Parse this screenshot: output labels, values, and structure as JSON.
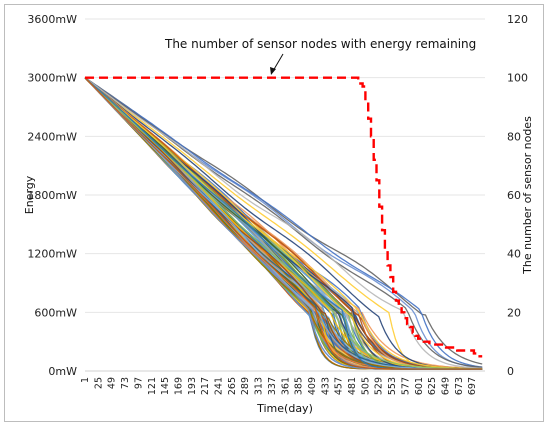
{
  "chart_data": {
    "type": "line",
    "xlabel": "Time(day)",
    "ylabel": "Energy",
    "y2label": "The number of sensor nodes",
    "annotation": "The number of sensor nodes with energy remaining",
    "x_ticks": [
      1,
      25,
      49,
      73,
      97,
      121,
      145,
      169,
      193,
      217,
      241,
      265,
      289,
      313,
      337,
      361,
      385,
      409,
      433,
      457,
      481,
      505,
      529,
      553,
      577,
      601,
      625,
      649,
      673,
      697
    ],
    "x_range": [
      1,
      720
    ],
    "y_ticks": [
      "0mW",
      "600mW",
      "1200mW",
      "1800mW",
      "2400mW",
      "3000mW",
      "3600mW"
    ],
    "y_range": [
      0,
      3600
    ],
    "y2_ticks": [
      "0",
      "20",
      "40",
      "60",
      "80",
      "100",
      "120"
    ],
    "y2_range": [
      0,
      120
    ],
    "grid": "horizontal",
    "energy_series_count": 100,
    "energy_start": 3000,
    "energy_depletion_day_range": [
      470,
      720
    ],
    "remaining_nodes_series": {
      "color": "#ff0000",
      "style": "dashed",
      "x": [
        1,
        485,
        492,
        500,
        505,
        510,
        515,
        520,
        525,
        530,
        535,
        540,
        545,
        550,
        555,
        560,
        565,
        570,
        575,
        580,
        585,
        590,
        595,
        600,
        610,
        620,
        630,
        640,
        650,
        660,
        670,
        680,
        690,
        700,
        705,
        715
      ],
      "y": [
        100,
        100,
        98,
        97,
        92,
        86,
        80,
        72,
        65,
        56,
        48,
        41,
        36,
        32,
        27,
        24,
        22,
        20,
        18,
        16,
        15,
        13,
        12,
        11,
        10,
        9,
        9,
        9,
        8,
        8,
        7,
        7,
        7,
        6,
        5,
        5
      ]
    },
    "palette": [
      "#4472c4",
      "#ed7d31",
      "#a5a5a5",
      "#ffc000",
      "#5b9bd5",
      "#70ad47",
      "#264478",
      "#9e480e",
      "#636363",
      "#997300",
      "#255e91",
      "#43682b",
      "#698ed0",
      "#f1975a",
      "#b7b7b7",
      "#ffcd33",
      "#7cafdd",
      "#8cc168",
      "#2e75b6",
      "#c55a11"
    ]
  }
}
